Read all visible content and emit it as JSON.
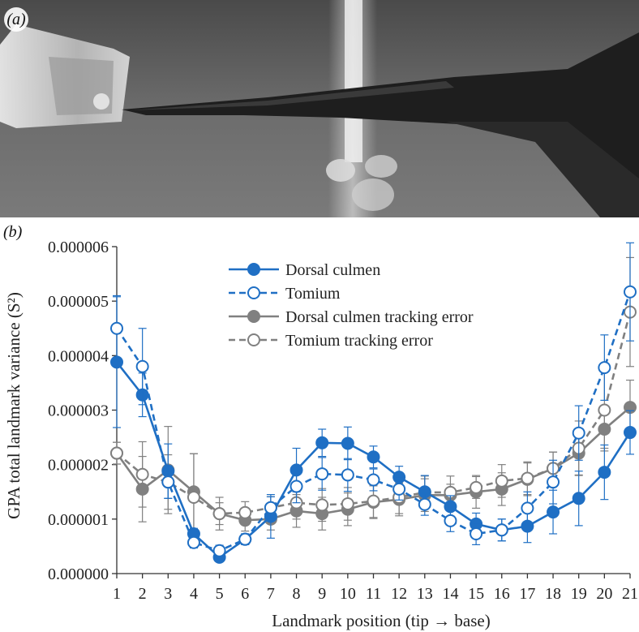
{
  "panel_a": {
    "label": "(a)"
  },
  "panel_b": {
    "label": "(b)"
  },
  "chart_data": {
    "type": "line",
    "xlabel": "Landmark position (tip → base)",
    "ylabel": "GPA total landmark variance (S²)",
    "xlim": [
      1,
      21
    ],
    "ylim": [
      0.0,
      6e-06
    ],
    "x": [
      1,
      2,
      3,
      4,
      5,
      6,
      7,
      8,
      9,
      10,
      11,
      12,
      13,
      14,
      15,
      16,
      17,
      18,
      19,
      20,
      21
    ],
    "xticks": [
      "1",
      "2",
      "3",
      "4",
      "5",
      "6",
      "7",
      "8",
      "9",
      "10",
      "11",
      "12",
      "13",
      "14",
      "15",
      "16",
      "17",
      "18",
      "19",
      "20",
      "21"
    ],
    "yticks": [
      "0.000000",
      "0.000001",
      "0.000002",
      "0.000003",
      "0.000004",
      "0.000005",
      "0.000006"
    ],
    "grid": false,
    "legend_position": "top-center",
    "series": [
      {
        "name": "Dorsal culmen",
        "color": "#1f6fc4",
        "line": "solid",
        "marker": "filled",
        "values": [
          3.88e-06,
          3.28e-06,
          1.88e-06,
          7.3e-07,
          3e-07,
          6.3e-07,
          1.05e-06,
          1.9e-06,
          2.4e-06,
          2.39e-06,
          2.14e-06,
          1.77e-06,
          1.5e-06,
          1.23e-06,
          9.1e-07,
          8e-07,
          8.7e-07,
          1.13e-06,
          1.38e-06,
          1.86e-06,
          2.59e-06
        ],
        "errors": [
          1.2e-06,
          4e-07,
          5e-07,
          1e-07,
          8e-08,
          1e-07,
          4e-07,
          4e-07,
          2.5e-07,
          3e-07,
          2e-07,
          2e-07,
          3e-07,
          2e-07,
          2e-07,
          2e-07,
          3e-07,
          4e-07,
          5e-07,
          5e-07,
          4e-07
        ]
      },
      {
        "name": "Tomium",
        "color": "#1f6fc4",
        "line": "dashed",
        "marker": "open",
        "values": [
          4.5e-06,
          3.8e-06,
          1.68e-06,
          5.7e-07,
          4.2e-07,
          6.3e-07,
          1.21e-06,
          1.6e-06,
          1.83e-06,
          1.81e-06,
          1.72e-06,
          1.55e-06,
          1.27e-06,
          9.7e-07,
          7.3e-07,
          8e-07,
          1.2e-06,
          1.68e-06,
          2.58e-06,
          3.78e-06,
          5.17e-06
        ],
        "errors": [
          6e-07,
          7e-07,
          3e-07,
          1e-07,
          1e-07,
          1e-07,
          2e-07,
          3e-07,
          3e-07,
          3e-07,
          2e-07,
          2e-07,
          2e-07,
          2e-07,
          2e-07,
          2e-07,
          3e-07,
          4e-07,
          5e-07,
          6e-07,
          9e-07
        ]
      },
      {
        "name": "Dorsal culmen tracking error",
        "color": "#808080",
        "line": "solid",
        "marker": "filled",
        "values": [
          2.21e-06,
          1.55e-06,
          1.9e-06,
          1.5e-06,
          1.1e-06,
          9.8e-07,
          1e-06,
          1.15e-06,
          1.1e-06,
          1.18e-06,
          1.31e-06,
          1.36e-06,
          1.44e-06,
          1.44e-06,
          1.5e-06,
          1.55e-06,
          1.73e-06,
          1.93e-06,
          2.21e-06,
          2.65e-06,
          3.05e-06
        ],
        "errors": [
          2e-07,
          6e-07,
          8e-07,
          7e-07,
          3e-07,
          2e-07,
          2e-07,
          3e-07,
          3e-07,
          3e-07,
          3e-07,
          3e-07,
          3e-07,
          2e-07,
          3e-07,
          3e-07,
          3e-07,
          3e-07,
          4e-07,
          4e-07,
          5e-07
        ]
      },
      {
        "name": "Tomium tracking error",
        "color": "#808080",
        "line": "dashed",
        "marker": "open",
        "values": [
          2.21e-06,
          1.82e-06,
          1.68e-06,
          1.4e-06,
          1.1e-06,
          1.12e-06,
          1.21e-06,
          1.3e-06,
          1.26e-06,
          1.28e-06,
          1.33e-06,
          1.4e-06,
          1.49e-06,
          1.49e-06,
          1.58e-06,
          1.7e-06,
          1.75e-06,
          1.93e-06,
          2.3e-06,
          3e-06,
          4.8e-06
        ],
        "errors": [
          2e-07,
          6e-07,
          5e-07,
          8e-07,
          2e-07,
          2e-07,
          2e-07,
          3e-07,
          3e-07,
          3e-07,
          3e-07,
          3e-07,
          3e-07,
          3e-07,
          2e-07,
          3e-07,
          3e-07,
          3e-07,
          5e-07,
          7e-07,
          1e-06
        ]
      }
    ]
  }
}
